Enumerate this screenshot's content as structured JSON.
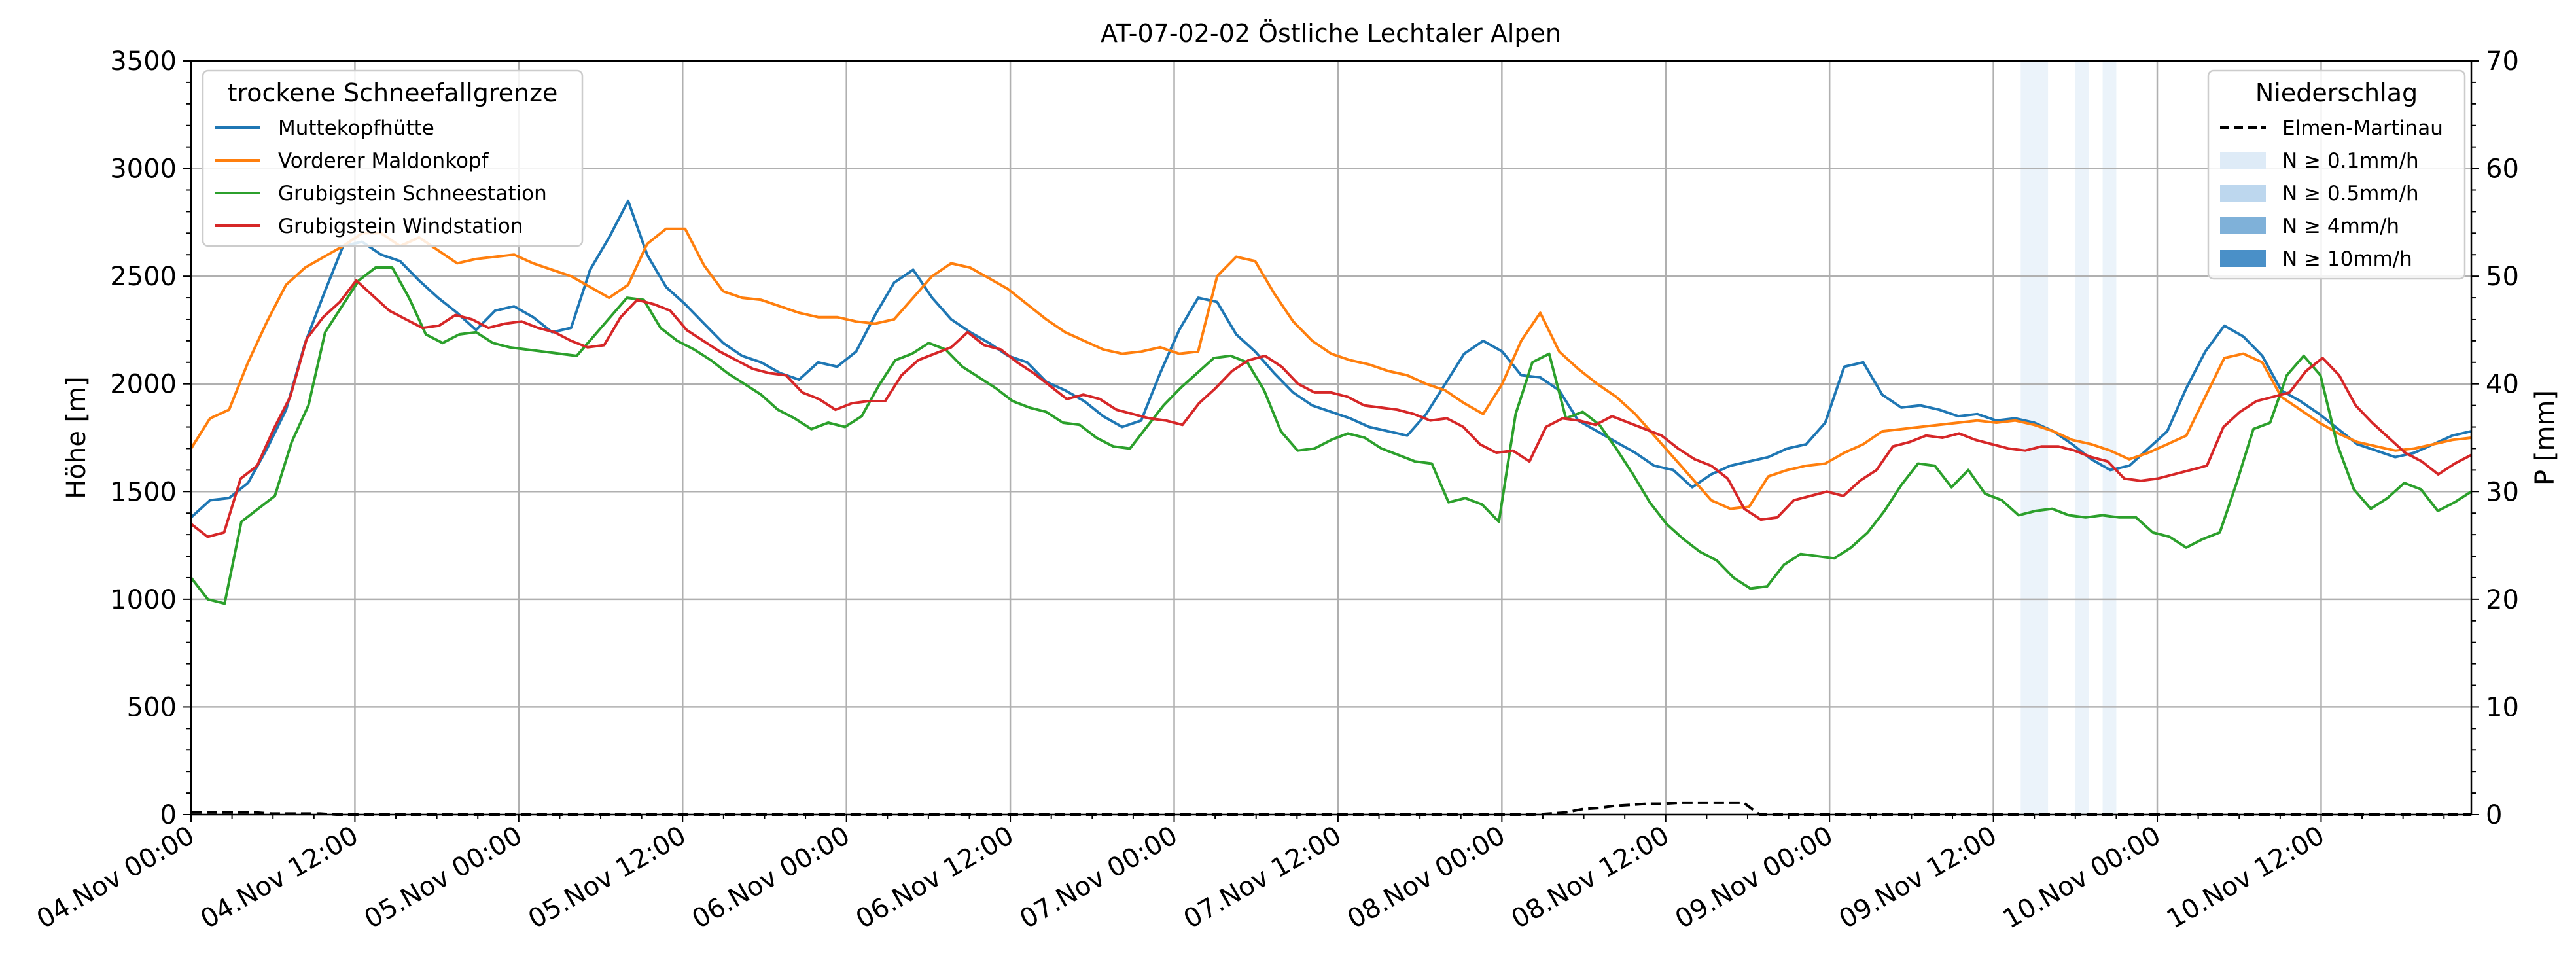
{
  "chart_data": {
    "type": "line",
    "title": "AT-07-02-02 Östliche Lechtaler Alpen",
    "ylabel": "Höhe [m]",
    "y2label": "P [mm]",
    "ylim": [
      0,
      3500
    ],
    "y2lim": [
      0,
      70
    ],
    "yticks": [
      "0",
      "500",
      "1000",
      "1500",
      "2000",
      "2500",
      "3000",
      "3500"
    ],
    "y2ticks": [
      "0",
      "10",
      "20",
      "30",
      "40",
      "50",
      "60",
      "70"
    ],
    "xlim_hours": [
      0,
      167
    ],
    "x_start": "04.Nov 00:00",
    "x_step_hours": 2,
    "xtick_labels": [
      "04.Nov 00:00",
      "04.Nov 12:00",
      "05.Nov 00:00",
      "05.Nov 12:00",
      "06.Nov 00:00",
      "06.Nov 12:00",
      "07.Nov 00:00",
      "07.Nov 12:00",
      "08.Nov 00:00",
      "08.Nov 12:00",
      "09.Nov 00:00",
      "09.Nov 12:00",
      "10.Nov 00:00",
      "10.Nov 12:00"
    ],
    "grid": true,
    "legend_left": {
      "title": "trockene Schneefallgrenze",
      "placement": "top-left"
    },
    "legend_right": {
      "title": "Niederschlag",
      "placement": "top-right",
      "entries": [
        {
          "label": "Elmen-Martinau",
          "style": "dashed",
          "color": "#000000"
        },
        {
          "label": "N ≥ 0.1mm/h",
          "color": "#deebf7"
        },
        {
          "label": "N ≥ 0.5mm/h",
          "color": "#bdd7ee"
        },
        {
          "label": "N ≥ 4mm/h",
          "color": "#7fb1d9"
        },
        {
          "label": "N ≥ 10mm/h",
          "color": "#4a90c8"
        }
      ]
    },
    "series": [
      {
        "name": "Muttekopfhütte",
        "color": "#1f77b4",
        "values": [
          1380,
          1460,
          1470,
          1540,
          1700,
          1880,
          2190,
          2420,
          2640,
          2660,
          2600,
          2570,
          2480,
          2400,
          2330,
          2250,
          2340,
          2360,
          2310,
          2240,
          2260,
          2530,
          2680,
          2850,
          2600,
          2450,
          2370,
          2280,
          2190,
          2130,
          2100,
          2050,
          2020,
          2100,
          2080,
          2150,
          2320,
          2470,
          2530,
          2400,
          2300,
          2240,
          2190,
          2130,
          2100,
          2010,
          1970,
          1920,
          1850,
          1800,
          1830,
          2050,
          2250,
          2400,
          2380,
          2230,
          2150,
          2050,
          1960,
          1900,
          1870,
          1840,
          1800,
          1780,
          1760,
          1860,
          2000,
          2140,
          2200,
          2150,
          2040,
          2030,
          1970,
          1830,
          1780,
          1730,
          1680,
          1620,
          1600,
          1520,
          1580,
          1620,
          1640,
          1660,
          1700,
          1720,
          1820,
          2080,
          2100,
          1950,
          1890,
          1900,
          1880,
          1850,
          1860,
          1830,
          1840,
          1820,
          1780,
          1720,
          1650,
          1600,
          1620,
          1700,
          1780,
          1980,
          2150,
          2270,
          2220,
          2130,
          1970,
          1920,
          1860,
          1790,
          1720,
          1690,
          1660,
          1680,
          1720,
          1760,
          1780
        ]
      },
      {
        "name": "Vorderer Maldonkopf",
        "color": "#ff7f0e",
        "values": [
          1700,
          1840,
          1880,
          2100,
          2290,
          2460,
          2540,
          2590,
          2640,
          2700,
          2700,
          2640,
          2680,
          2620,
          2560,
          2580,
          2590,
          2600,
          2560,
          2530,
          2500,
          2450,
          2400,
          2460,
          2650,
          2720,
          2720,
          2550,
          2430,
          2400,
          2390,
          2360,
          2330,
          2310,
          2310,
          2290,
          2280,
          2300,
          2400,
          2500,
          2560,
          2540,
          2490,
          2440,
          2370,
          2300,
          2240,
          2200,
          2160,
          2140,
          2150,
          2170,
          2140,
          2150,
          2500,
          2590,
          2570,
          2420,
          2290,
          2200,
          2140,
          2110,
          2090,
          2060,
          2040,
          2000,
          1970,
          1910,
          1860,
          2000,
          2200,
          2330,
          2150,
          2070,
          2000,
          1940,
          1860,
          1760,
          1660,
          1560,
          1460,
          1420,
          1430,
          1570,
          1600,
          1620,
          1630,
          1680,
          1720,
          1780,
          1790,
          1800,
          1810,
          1820,
          1830,
          1820,
          1830,
          1810,
          1780,
          1740,
          1720,
          1690,
          1650,
          1680,
          1720,
          1760,
          1940,
          2120,
          2140,
          2100,
          1940,
          1880,
          1820,
          1770,
          1730,
          1710,
          1690,
          1700,
          1720,
          1740,
          1750
        ]
      },
      {
        "name": "Grubigstein Schneestation",
        "color": "#2ca02c",
        "values": [
          1100,
          1000,
          980,
          1360,
          1420,
          1480,
          1730,
          1900,
          2240,
          2360,
          2480,
          2540,
          2540,
          2400,
          2230,
          2190,
          2230,
          2240,
          2190,
          2170,
          2160,
          2150,
          2140,
          2130,
          2220,
          2310,
          2400,
          2390,
          2260,
          2200,
          2160,
          2110,
          2050,
          2000,
          1950,
          1880,
          1840,
          1790,
          1820,
          1800,
          1850,
          1990,
          2110,
          2140,
          2190,
          2160,
          2080,
          2030,
          1980,
          1920,
          1890,
          1870,
          1820,
          1810,
          1750,
          1710,
          1700,
          1800,
          1900,
          1980,
          2050,
          2120,
          2130,
          2100,
          1970,
          1780,
          1690,
          1700,
          1740,
          1770,
          1750,
          1700,
          1670,
          1640,
          1630,
          1450,
          1470,
          1440,
          1360,
          1860,
          2100,
          2140,
          1840,
          1870,
          1810,
          1700,
          1580,
          1450,
          1350,
          1280,
          1220,
          1180,
          1100,
          1050,
          1060,
          1160,
          1210,
          1200,
          1190,
          1240,
          1310,
          1410,
          1530,
          1630,
          1620,
          1520,
          1600,
          1490,
          1460,
          1390,
          1410,
          1420,
          1390,
          1380,
          1390,
          1380,
          1380,
          1310,
          1290,
          1240,
          1280,
          1310,
          1540,
          1790,
          1820,
          2040,
          2130,
          2040,
          1720,
          1510,
          1420,
          1470,
          1540,
          1510,
          1410,
          1450,
          1500
        ]
      },
      {
        "name": "Grubigstein Windstation",
        "color": "#d62728",
        "values": [
          1350,
          1290,
          1310,
          1560,
          1620,
          1790,
          1940,
          2210,
          2310,
          2380,
          2480,
          2410,
          2340,
          2300,
          2260,
          2270,
          2320,
          2300,
          2260,
          2280,
          2290,
          2260,
          2240,
          2200,
          2170,
          2180,
          2310,
          2390,
          2370,
          2340,
          2250,
          2200,
          2150,
          2110,
          2070,
          2050,
          2040,
          1960,
          1930,
          1880,
          1910,
          1920,
          1920,
          2040,
          2110,
          2140,
          2170,
          2240,
          2180,
          2160,
          2100,
          2050,
          1990,
          1930,
          1950,
          1930,
          1880,
          1860,
          1840,
          1830,
          1810,
          1910,
          1980,
          2060,
          2110,
          2130,
          2080,
          2000,
          1960,
          1960,
          1940,
          1900,
          1890,
          1880,
          1860,
          1830,
          1840,
          1800,
          1720,
          1680,
          1690,
          1640,
          1800,
          1840,
          1830,
          1810,
          1850,
          1820,
          1790,
          1760,
          1700,
          1650,
          1620,
          1560,
          1420,
          1370,
          1380,
          1460,
          1480,
          1500,
          1480,
          1550,
          1600,
          1710,
          1730,
          1760,
          1750,
          1770,
          1740,
          1720,
          1700,
          1690,
          1710,
          1710,
          1690,
          1660,
          1640,
          1560,
          1550,
          1560,
          1580,
          1600,
          1620,
          1800,
          1870,
          1920,
          1940,
          1960,
          2060,
          2120,
          2040,
          1900,
          1820,
          1750,
          1680,
          1640,
          1580,
          1630,
          1670
        ]
      }
    ],
    "precip": {
      "name": "Elmen-Martinau",
      "values_mm": [
        0.2,
        0.2,
        0.2,
        0.2,
        0.2,
        0.1,
        0.1,
        0.1,
        0.1,
        0,
        0,
        0,
        0,
        0,
        0,
        0,
        0,
        0,
        0,
        0,
        0,
        0,
        0,
        0,
        0,
        0,
        0,
        0,
        0,
        0,
        0,
        0,
        0,
        0,
        0,
        0,
        0,
        0,
        0,
        0,
        0,
        0,
        0,
        0,
        0,
        0,
        0,
        0,
        0,
        0,
        0,
        0,
        0,
        0,
        0,
        0,
        0,
        0,
        0,
        0,
        0,
        0,
        0,
        0,
        0,
        0,
        0,
        0,
        0,
        0,
        0,
        0,
        0,
        0,
        0,
        0,
        0,
        0,
        0,
        0,
        0,
        0,
        0,
        0,
        0.1,
        0.2,
        0.5,
        0.6,
        0.8,
        0.9,
        1.0,
        1.0,
        1.1,
        1.1,
        1.1,
        1.1,
        1.1,
        0,
        0,
        0,
        0,
        0,
        0,
        0,
        0,
        0,
        0,
        0,
        0,
        0,
        0,
        0,
        0,
        0,
        0,
        0,
        0,
        0,
        0,
        0,
        0,
        0,
        0,
        0,
        0,
        0,
        0,
        0,
        0,
        0,
        0,
        0,
        0,
        0,
        0,
        0,
        0,
        0,
        0,
        0,
        0,
        0
      ]
    },
    "precip_intensity_bands": [
      {
        "start_hour": 134,
        "end_hour": 136,
        "level": "N ≥ 0.1mm/h"
      },
      {
        "start_hour": 138,
        "end_hour": 139,
        "level": "N ≥ 0.1mm/h"
      },
      {
        "start_hour": 140,
        "end_hour": 141,
        "level": "N ≥ 0.1mm/h"
      }
    ]
  }
}
